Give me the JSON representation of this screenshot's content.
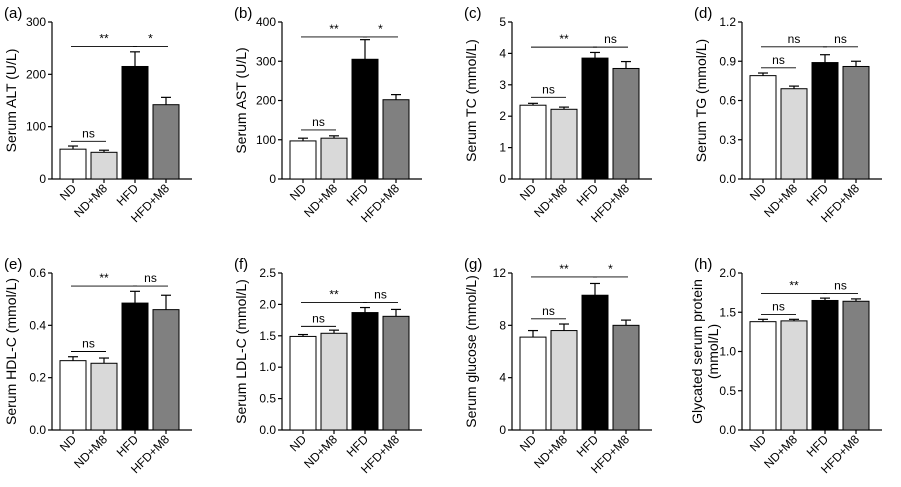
{
  "figure": {
    "background": "#ffffff"
  },
  "bar_colors": [
    "#ffffff",
    "#d9d9d9",
    "#000000",
    "#808080"
  ],
  "chart_data": [
    {
      "type": "bar",
      "label": "(a)",
      "ylabel": "Serum ALT (U/L)",
      "categories": [
        "ND",
        "ND+M8",
        "HFD",
        "HFD+M8"
      ],
      "values": [
        57,
        51,
        215,
        142
      ],
      "errors": [
        6,
        4,
        28,
        14
      ],
      "ylim": [
        0,
        300
      ],
      "yticks": [
        "0",
        "100",
        "200",
        "300"
      ],
      "significance": [
        {
          "from": 0,
          "to": 2,
          "text": "**",
          "y": 253
        },
        {
          "from": 2,
          "to": 3,
          "text": "*",
          "y": 253
        },
        {
          "from": 0,
          "to": 1,
          "text": "ns",
          "y": 72
        }
      ]
    },
    {
      "type": "bar",
      "label": "(b)",
      "ylabel": "Serum AST (U/L)",
      "categories": [
        "ND",
        "ND+M8",
        "HFD",
        "HFD+M8"
      ],
      "values": [
        97,
        104,
        305,
        202
      ],
      "errors": [
        7,
        6,
        50,
        13
      ],
      "ylim": [
        0,
        400
      ],
      "yticks": [
        "0",
        "100",
        "200",
        "300",
        "400"
      ],
      "significance": [
        {
          "from": 0,
          "to": 2,
          "text": "**",
          "y": 362
        },
        {
          "from": 2,
          "to": 3,
          "text": "*",
          "y": 362
        },
        {
          "from": 0,
          "to": 1,
          "text": "ns",
          "y": 125
        }
      ]
    },
    {
      "type": "bar",
      "label": "(c)",
      "ylabel": "Serum TC (mmol/L)",
      "categories": [
        "ND",
        "ND+M8",
        "HFD",
        "HFD+M8"
      ],
      "values": [
        2.35,
        2.22,
        3.85,
        3.52
      ],
      "errors": [
        0.06,
        0.07,
        0.18,
        0.22
      ],
      "ylim": [
        0,
        5
      ],
      "yticks": [
        "0",
        "1",
        "2",
        "3",
        "4",
        "5"
      ],
      "significance": [
        {
          "from": 0,
          "to": 2,
          "text": "**",
          "y": 4.2
        },
        {
          "from": 2,
          "to": 3,
          "text": "ns",
          "y": 4.2
        },
        {
          "from": 0,
          "to": 1,
          "text": "ns",
          "y": 2.6
        }
      ]
    },
    {
      "type": "bar",
      "label": "(d)",
      "ylabel": "Serum TG (mmol/L)",
      "categories": [
        "ND",
        "ND+M8",
        "HFD",
        "HFD+M8"
      ],
      "values": [
        0.79,
        0.69,
        0.89,
        0.86
      ],
      "errors": [
        0.02,
        0.02,
        0.06,
        0.04
      ],
      "ylim": [
        0,
        1.2
      ],
      "yticks": [
        "0.0",
        "0.3",
        "0.6",
        "0.9",
        "1.2"
      ],
      "significance": [
        {
          "from": 0,
          "to": 2,
          "text": "ns",
          "y": 1.01
        },
        {
          "from": 2,
          "to": 3,
          "text": "ns",
          "y": 1.01
        },
        {
          "from": 0,
          "to": 1,
          "text": "ns",
          "y": 0.85
        }
      ]
    },
    {
      "type": "bar",
      "label": "(e)",
      "ylabel": "Serum HDL-C (mmol/L)",
      "categories": [
        "ND",
        "ND+M8",
        "HFD",
        "HFD+M8"
      ],
      "values": [
        0.265,
        0.255,
        0.485,
        0.46
      ],
      "errors": [
        0.015,
        0.02,
        0.045,
        0.055
      ],
      "ylim": [
        0,
        0.6
      ],
      "yticks": [
        "0.0",
        "0.2",
        "0.4",
        "0.6"
      ],
      "significance": [
        {
          "from": 0,
          "to": 2,
          "text": "**",
          "y": 0.55
        },
        {
          "from": 2,
          "to": 3,
          "text": "ns",
          "y": 0.55
        },
        {
          "from": 0,
          "to": 1,
          "text": "ns",
          "y": 0.3
        }
      ]
    },
    {
      "type": "bar",
      "label": "(f)",
      "ylabel": "Serum LDL-C (mmol/L)",
      "categories": [
        "ND",
        "ND+M8",
        "HFD",
        "HFD+M8"
      ],
      "values": [
        1.49,
        1.54,
        1.87,
        1.81
      ],
      "errors": [
        0.03,
        0.05,
        0.08,
        0.11
      ],
      "ylim": [
        0,
        2.5
      ],
      "yticks": [
        "0.0",
        "0.5",
        "1.0",
        "1.5",
        "2.0",
        "2.5"
      ],
      "significance": [
        {
          "from": 0,
          "to": 2,
          "text": "**",
          "y": 2.03
        },
        {
          "from": 2,
          "to": 3,
          "text": "ns",
          "y": 2.03
        },
        {
          "from": 0,
          "to": 1,
          "text": "ns",
          "y": 1.65
        }
      ]
    },
    {
      "type": "bar",
      "label": "(g)",
      "ylabel": "Serum glucose (mmol/L)",
      "categories": [
        "ND",
        "ND+M8",
        "HFD",
        "HFD+M8"
      ],
      "values": [
        7.1,
        7.6,
        10.3,
        8.0
      ],
      "errors": [
        0.5,
        0.5,
        0.9,
        0.4
      ],
      "ylim": [
        0,
        12
      ],
      "yticks": [
        "0",
        "4",
        "8",
        "12"
      ],
      "significance": [
        {
          "from": 0,
          "to": 2,
          "text": "**",
          "y": 11.7
        },
        {
          "from": 2,
          "to": 3,
          "text": "*",
          "y": 11.7
        },
        {
          "from": 0,
          "to": 1,
          "text": "ns",
          "y": 8.5
        }
      ]
    },
    {
      "type": "bar",
      "label": "(h)",
      "ylabel_lines": [
        "Glycated serum protein",
        "(mmol/L)"
      ],
      "categories": [
        "ND",
        "ND+M8",
        "HFD",
        "HFD+M8"
      ],
      "values": [
        1.38,
        1.39,
        1.65,
        1.64
      ],
      "errors": [
        0.03,
        0.02,
        0.03,
        0.03
      ],
      "ylim": [
        0,
        2.0
      ],
      "yticks": [
        "0.0",
        "0.5",
        "1.0",
        "1.5",
        "2.0"
      ],
      "significance": [
        {
          "from": 0,
          "to": 2,
          "text": "**",
          "y": 1.74
        },
        {
          "from": 2,
          "to": 3,
          "text": "ns",
          "y": 1.74
        },
        {
          "from": 0,
          "to": 1,
          "text": "ns",
          "y": 1.47
        }
      ]
    }
  ]
}
